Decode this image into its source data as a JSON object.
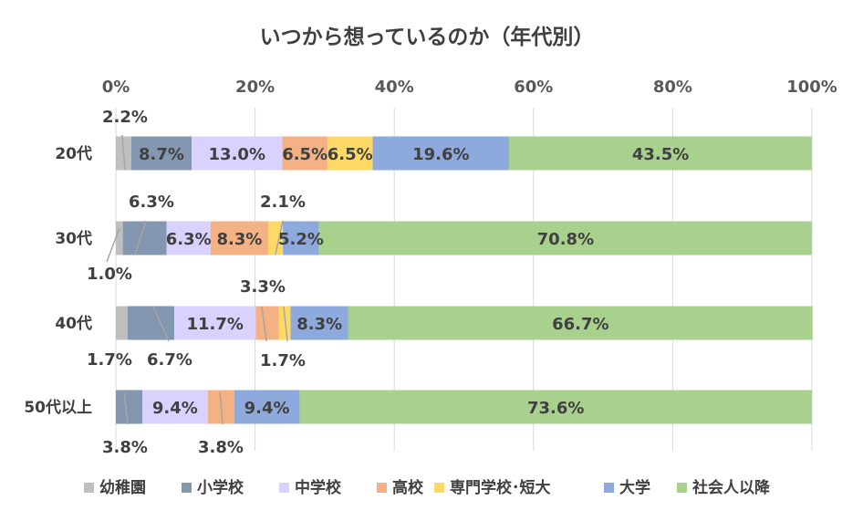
{
  "chart_data": {
    "type": "bar",
    "orientation": "horizontal",
    "stacked": true,
    "title": "いつから想っているのか（年代別）",
    "xlabel": "",
    "ylabel": "",
    "xlim": [
      0,
      100
    ],
    "x_ticks": [
      "0%",
      "20%",
      "40%",
      "60%",
      "80%",
      "100%"
    ],
    "categories": [
      "20代",
      "30代",
      "40代",
      "50代以上"
    ],
    "series": [
      {
        "name": "幼稚園",
        "color": "#BFBFBF",
        "values": [
          2.2,
          1.0,
          1.7,
          0.0
        ],
        "labels": [
          "2.2%",
          "1.0%",
          "1.7%",
          ""
        ]
      },
      {
        "name": "小学校",
        "color": "#8497B0",
        "values": [
          8.7,
          6.3,
          6.7,
          3.8
        ],
        "labels": [
          "8.7%",
          "6.3%",
          "6.7%",
          "3.8%"
        ]
      },
      {
        "name": "中学校",
        "color": "#D9D2FF",
        "values": [
          13.0,
          6.3,
          11.7,
          9.4
        ],
        "labels": [
          "13.0%",
          "6.3%",
          "11.7%",
          "9.4%"
        ]
      },
      {
        "name": "高校",
        "color": "#F4B183",
        "values": [
          6.5,
          8.3,
          3.3,
          3.8
        ],
        "labels": [
          "6.5%",
          "8.3%",
          "3.3%",
          "3.8%"
        ]
      },
      {
        "name": "専門学校･短大",
        "color": "#FFD966",
        "values": [
          6.5,
          2.1,
          1.7,
          0.0
        ],
        "labels": [
          "6.5%",
          "2.1%",
          "1.7%",
          ""
        ]
      },
      {
        "name": "大学",
        "color": "#8EA9DB",
        "values": [
          19.6,
          5.2,
          8.3,
          9.4
        ],
        "labels": [
          "19.6%",
          "5.2%",
          "8.3%",
          "9.4%"
        ]
      },
      {
        "name": "社会人以降",
        "color": "#A9D18E",
        "values": [
          43.5,
          70.8,
          66.7,
          73.6
        ],
        "labels": [
          "43.5%",
          "70.8%",
          "66.7%",
          "73.6%"
        ]
      }
    ],
    "grid": true,
    "legend_position": "bottom"
  }
}
